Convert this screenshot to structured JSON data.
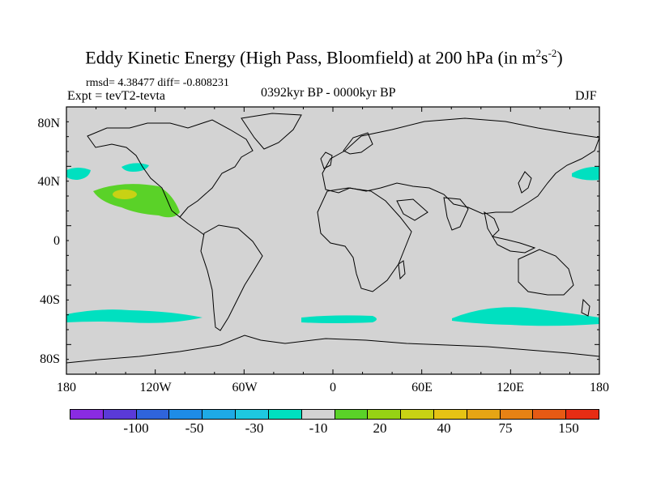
{
  "title": {
    "main": "Eddy Kinetic Energy (High Pass, Bloomfield) at 200 hPa (in m",
    "sup1": "2",
    "mid": "s",
    "sup2": "-2",
    "close": ")"
  },
  "stats": "rmsd= 4.38477 diff= -0.808231",
  "expt": "Expt = tevT2-tevta",
  "period": "0392kyr BP - 0000kyr BP",
  "season": "DJF",
  "map": {
    "background_color": "#d3d3d3",
    "lat_labels": [
      "80N",
      "40N",
      "0",
      "40S",
      "80S"
    ],
    "lon_labels": [
      "180",
      "120W",
      "60W",
      "0",
      "60E",
      "120E",
      "180"
    ]
  },
  "colorbar": {
    "colors": [
      "#8a2be2",
      "#5a3ad8",
      "#2f64dc",
      "#1e8ce6",
      "#1eaae6",
      "#1ec8e0",
      "#00e0c0",
      "#d3d3d3",
      "#5ad228",
      "#96d214",
      "#c8d214",
      "#e6c314",
      "#e6a514",
      "#e68214",
      "#e65a14",
      "#e62d14"
    ],
    "labels": [
      "-100",
      "-50",
      "-30",
      "-10",
      "20",
      "40",
      "75",
      "150"
    ]
  },
  "anomaly_colors": {
    "negative_small": "#00e0c0",
    "positive_small": "#5ad228",
    "positive_medium": "#c8d214"
  }
}
